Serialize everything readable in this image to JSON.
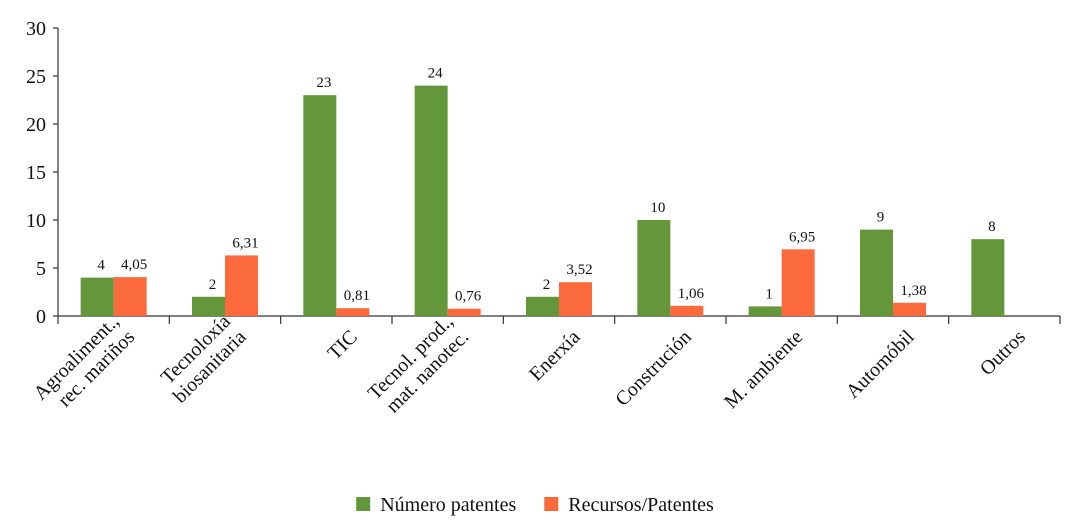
{
  "chart_data": {
    "type": "bar",
    "categories": [
      "Agroaliment.,\nrec. mariños",
      "Tecnoloxía\nbiosanitaria",
      "TIC",
      "Tecnol. prod.,\nmat. nanotec.",
      "Enerxía",
      "Construción",
      "M. ambiente",
      "Automóbil",
      "Outros"
    ],
    "series": [
      {
        "name": "Número patentes",
        "color": "#64973a",
        "values": [
          4,
          2,
          23,
          24,
          2,
          10,
          1,
          9,
          8
        ]
      },
      {
        "name": "Recursos/Patentes",
        "color": "#fa6a3c",
        "values": [
          4.05,
          6.31,
          0.81,
          0.76,
          3.52,
          1.06,
          6.95,
          1.38,
          null
        ],
        "value_labels": [
          "4,05",
          "6,31",
          "0,81",
          "0,76",
          "3,52",
          "1,06",
          "6,95",
          "1,38",
          null
        ]
      }
    ],
    "ylim": [
      0,
      30
    ],
    "yticks": [
      0,
      5,
      10,
      15,
      20,
      25,
      30
    ],
    "grid": false,
    "legend": "bottom"
  }
}
